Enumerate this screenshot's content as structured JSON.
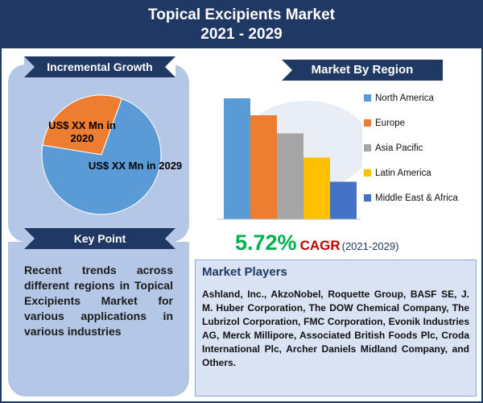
{
  "header": {
    "title_line1": "Topical Excipients Market",
    "title_line2": "2021 - 2029"
  },
  "incremental": {
    "heading": "Incremental Growth",
    "label_2020": "US$ XX Mn in 2020",
    "label_2029": "US$ XX Mn in 2029"
  },
  "key_point": {
    "heading": "Key Point",
    "text": "Recent trends across different regions in Topical Excipients Market for various applications in various industries"
  },
  "region": {
    "heading": "Market By Region"
  },
  "cagr": {
    "value": "5.72%",
    "label": "CAGR",
    "years": "(2021-2029)"
  },
  "players": {
    "heading": "Market Players",
    "text": "Ashland, Inc., AkzoNobel, Roquette Group, BASF SE, J. M. Huber Corporation, The DOW Chemical Company, The Lubrizol Corporation, FMC Corporation, Evonik Industries AG, Merck Millipore, Associated British Foods Plc, Croda International Plc, Archer Daniels Midland Company, and Others."
  },
  "chart_data": [
    {
      "type": "pie",
      "slices": [
        {
          "label": "US$ XX Mn in 2020",
          "value": 28,
          "color": "#ed7d31"
        },
        {
          "label": "US$ XX Mn in 2029",
          "value": 72,
          "color": "#5b9bd5"
        }
      ]
    },
    {
      "type": "bar",
      "categories": [
        "North America",
        "Europe",
        "Asia Pacific",
        "Latin America",
        "Middle East & Africa"
      ],
      "values": [
        100,
        86,
        71,
        51,
        31
      ],
      "colors": [
        "#5b9bd5",
        "#ed7d31",
        "#a5a5a5",
        "#ffc000",
        "#4472c4"
      ],
      "ylim": [
        0,
        100
      ],
      "legend": "right"
    }
  ]
}
